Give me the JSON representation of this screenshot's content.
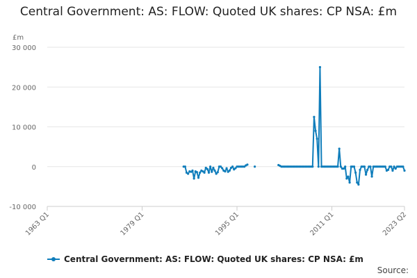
{
  "chart_data": {
    "type": "line",
    "title": "Central Government: AS: FLOW: Quoted UK shares: CP NSA: £m",
    "unit_label": "£m",
    "ylim": [
      -10000,
      30000
    ],
    "y_ticks": [
      {
        "value": -10000,
        "label": "-10 000"
      },
      {
        "value": 0,
        "label": "0"
      },
      {
        "value": 10000,
        "label": "10 000"
      },
      {
        "value": 20000,
        "label": "20 000"
      },
      {
        "value": 30000,
        "label": "30 000"
      }
    ],
    "xlim": [
      "1963 Q1",
      "2023 Q2"
    ],
    "x_ticks": [
      "1963 Q1",
      "1979 Q1",
      "1995 Q1",
      "2011 Q1",
      "2023 Q2"
    ],
    "grid": "horizontal",
    "legend_position": "bottom",
    "series": [
      {
        "name": "Central Government: AS: FLOW: Quoted UK shares: CP NSA: £m",
        "color": "#0f7dbb",
        "segments": [
          [
            [
              "1986 Q1",
              0
            ],
            [
              "1986 Q2",
              0
            ],
            [
              "1986 Q3",
              -1500
            ],
            [
              "1986 Q4",
              -1800
            ],
            [
              "1987 Q1",
              -1200
            ],
            [
              "1987 Q2",
              -1300
            ],
            [
              "1987 Q3",
              -1000
            ],
            [
              "1987 Q4",
              -3000
            ],
            [
              "1988 Q1",
              -1200
            ],
            [
              "1988 Q2",
              -1400
            ],
            [
              "1988 Q3",
              -2800
            ],
            [
              "1988 Q4",
              -1500
            ],
            [
              "1989 Q1",
              -1000
            ],
            [
              "1989 Q2",
              -1200
            ],
            [
              "1989 Q3",
              -1500
            ],
            [
              "1989 Q4",
              -300
            ],
            [
              "1990 Q1",
              -600
            ],
            [
              "1990 Q2",
              -1500
            ],
            [
              "1990 Q3",
              0
            ],
            [
              "1990 Q4",
              -1300
            ],
            [
              "1991 Q1",
              -300
            ],
            [
              "1991 Q2",
              -1000
            ],
            [
              "1991 Q3",
              -1800
            ],
            [
              "1991 Q4",
              -1400
            ],
            [
              "1992 Q1",
              0
            ],
            [
              "1992 Q2",
              0
            ],
            [
              "1992 Q3",
              -400
            ],
            [
              "1992 Q4",
              -1000
            ],
            [
              "1993 Q1",
              -1200
            ],
            [
              "1993 Q2",
              -400
            ],
            [
              "1993 Q3",
              -1300
            ],
            [
              "1993 Q4",
              -1000
            ],
            [
              "1994 Q1",
              -300
            ],
            [
              "1994 Q2",
              0
            ],
            [
              "1994 Q3",
              -700
            ],
            [
              "1994 Q4",
              -400
            ],
            [
              "1995 Q1",
              0
            ],
            [
              "1995 Q2",
              0
            ],
            [
              "1995 Q3",
              0
            ],
            [
              "1995 Q4",
              0
            ],
            [
              "1996 Q1",
              0
            ],
            [
              "1996 Q2",
              0
            ],
            [
              "1996 Q3",
              300
            ],
            [
              "1996 Q4",
              500
            ]
          ],
          [
            [
              "1998 Q1",
              0
            ]
          ],
          [
            [
              "2002 Q1",
              400
            ],
            [
              "2002 Q2",
              200
            ],
            [
              "2002 Q3",
              0
            ],
            [
              "2002 Q4",
              0
            ],
            [
              "2003 Q1",
              0
            ],
            [
              "2003 Q2",
              0
            ],
            [
              "2003 Q3",
              0
            ],
            [
              "2003 Q4",
              0
            ],
            [
              "2004 Q1",
              0
            ],
            [
              "2004 Q2",
              0
            ],
            [
              "2004 Q3",
              0
            ],
            [
              "2004 Q4",
              0
            ],
            [
              "2005 Q1",
              0
            ],
            [
              "2005 Q2",
              0
            ],
            [
              "2005 Q3",
              0
            ],
            [
              "2005 Q4",
              0
            ],
            [
              "2006 Q1",
              0
            ],
            [
              "2006 Q2",
              0
            ],
            [
              "2006 Q3",
              0
            ],
            [
              "2006 Q4",
              0
            ],
            [
              "2007 Q1",
              0
            ],
            [
              "2007 Q2",
              0
            ],
            [
              "2007 Q3",
              0
            ],
            [
              "2007 Q4",
              0
            ],
            [
              "2008 Q1",
              12500
            ],
            [
              "2008 Q2",
              9000
            ],
            [
              "2008 Q3",
              7000
            ],
            [
              "2008 Q4",
              0
            ],
            [
              "2009 Q1",
              25000
            ],
            [
              "2009 Q2",
              0
            ],
            [
              "2009 Q3",
              0
            ],
            [
              "2009 Q4",
              0
            ],
            [
              "2010 Q1",
              0
            ],
            [
              "2010 Q2",
              0
            ],
            [
              "2010 Q3",
              0
            ],
            [
              "2010 Q4",
              0
            ],
            [
              "2011 Q1",
              0
            ],
            [
              "2011 Q2",
              0
            ],
            [
              "2011 Q3",
              0
            ],
            [
              "2011 Q4",
              0
            ],
            [
              "2012 Q1",
              0
            ],
            [
              "2012 Q2",
              4500
            ],
            [
              "2012 Q3",
              0
            ],
            [
              "2012 Q4",
              -500
            ],
            [
              "2013 Q1",
              -500
            ],
            [
              "2013 Q2",
              0
            ],
            [
              "2013 Q3",
              -3000
            ],
            [
              "2013 Q4",
              -2500
            ],
            [
              "2014 Q1",
              -4000
            ],
            [
              "2014 Q2",
              0
            ],
            [
              "2014 Q3",
              0
            ],
            [
              "2014 Q4",
              0
            ],
            [
              "2015 Q1",
              -1500
            ],
            [
              "2015 Q2",
              -4000
            ],
            [
              "2015 Q3",
              -4500
            ],
            [
              "2015 Q4",
              -800
            ],
            [
              "2016 Q1",
              0
            ],
            [
              "2016 Q2",
              0
            ],
            [
              "2016 Q3",
              0
            ],
            [
              "2016 Q4",
              -2000
            ],
            [
              "2017 Q1",
              -800
            ],
            [
              "2017 Q2",
              0
            ],
            [
              "2017 Q3",
              0
            ],
            [
              "2017 Q4",
              -2500
            ],
            [
              "2018 Q1",
              0
            ],
            [
              "2018 Q2",
              0
            ],
            [
              "2018 Q3",
              0
            ],
            [
              "2018 Q4",
              0
            ],
            [
              "2019 Q1",
              0
            ],
            [
              "2019 Q2",
              0
            ],
            [
              "2019 Q3",
              0
            ],
            [
              "2019 Q4",
              0
            ],
            [
              "2020 Q1",
              0
            ],
            [
              "2020 Q2",
              -1000
            ],
            [
              "2020 Q3",
              -800
            ],
            [
              "2020 Q4",
              0
            ],
            [
              "2021 Q1",
              0
            ],
            [
              "2021 Q2",
              -1000
            ],
            [
              "2021 Q3",
              0
            ],
            [
              "2021 Q4",
              -500
            ],
            [
              "2022 Q1",
              0
            ],
            [
              "2022 Q2",
              0
            ],
            [
              "2022 Q3",
              0
            ],
            [
              "2022 Q4",
              0
            ],
            [
              "2023 Q1",
              0
            ],
            [
              "2023 Q2",
              -1000
            ]
          ]
        ]
      }
    ]
  },
  "source_label": "Source:"
}
